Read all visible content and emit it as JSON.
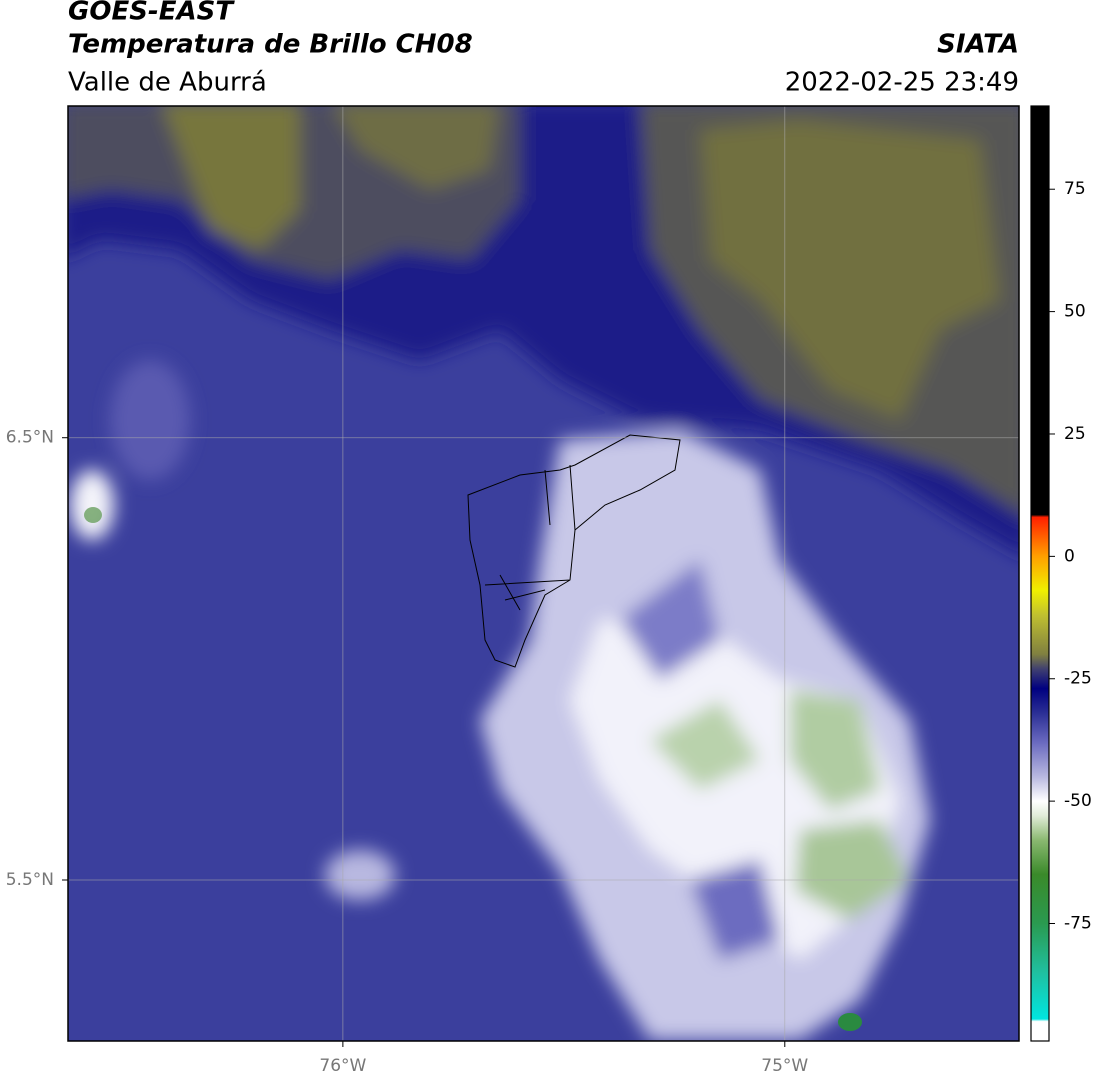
{
  "header": {
    "title": "GOES-EAST",
    "subtitle": "Temperatura de Brillo CH08",
    "region": "Valle de Aburrá",
    "source": "SIATA",
    "datetime": "2022-02-25 23:49"
  },
  "map": {
    "xlim": [
      -76.622,
      -74.47
    ],
    "ylim": [
      5.136,
      7.25
    ],
    "xticks": [
      {
        "value": -76,
        "label": "76°W"
      },
      {
        "value": -75,
        "label": "75°W"
      }
    ],
    "yticks": [
      {
        "value": 6.5,
        "label": "6.5°N"
      },
      {
        "value": 5.5,
        "label": "5.5°N"
      }
    ],
    "grid": true
  },
  "colorbar": {
    "clim": [
      -99,
      92
    ],
    "ticks": [
      75,
      50,
      25,
      0,
      -25,
      -50,
      -75
    ],
    "colormap": [
      {
        "value": -99,
        "color": "#ffffff"
      },
      {
        "value": -95,
        "color": "#ffffff"
      },
      {
        "value": -94.5,
        "color": "#00e5e0"
      },
      {
        "value": -85,
        "color": "#20c0a0"
      },
      {
        "value": -75,
        "color": "#2a9a50"
      },
      {
        "value": -65,
        "color": "#3a8a2a"
      },
      {
        "value": -58,
        "color": "#8ab870"
      },
      {
        "value": -53,
        "color": "#e0ecd8"
      },
      {
        "value": -50,
        "color": "#ffffff"
      },
      {
        "value": -45,
        "color": "#b8b8e0"
      },
      {
        "value": -38,
        "color": "#6a6ac0"
      },
      {
        "value": -32,
        "color": "#2b2f95"
      },
      {
        "value": -27,
        "color": "#000080"
      },
      {
        "value": -23,
        "color": "#404070"
      },
      {
        "value": -20,
        "color": "#808040"
      },
      {
        "value": -12,
        "color": "#c0c030"
      },
      {
        "value": -7,
        "color": "#f0f000"
      },
      {
        "value": 0,
        "color": "#ffa000"
      },
      {
        "value": 8,
        "color": "#ff2000"
      },
      {
        "value": 8.5,
        "color": "#000000"
      },
      {
        "value": 92,
        "color": "#000000"
      }
    ]
  }
}
